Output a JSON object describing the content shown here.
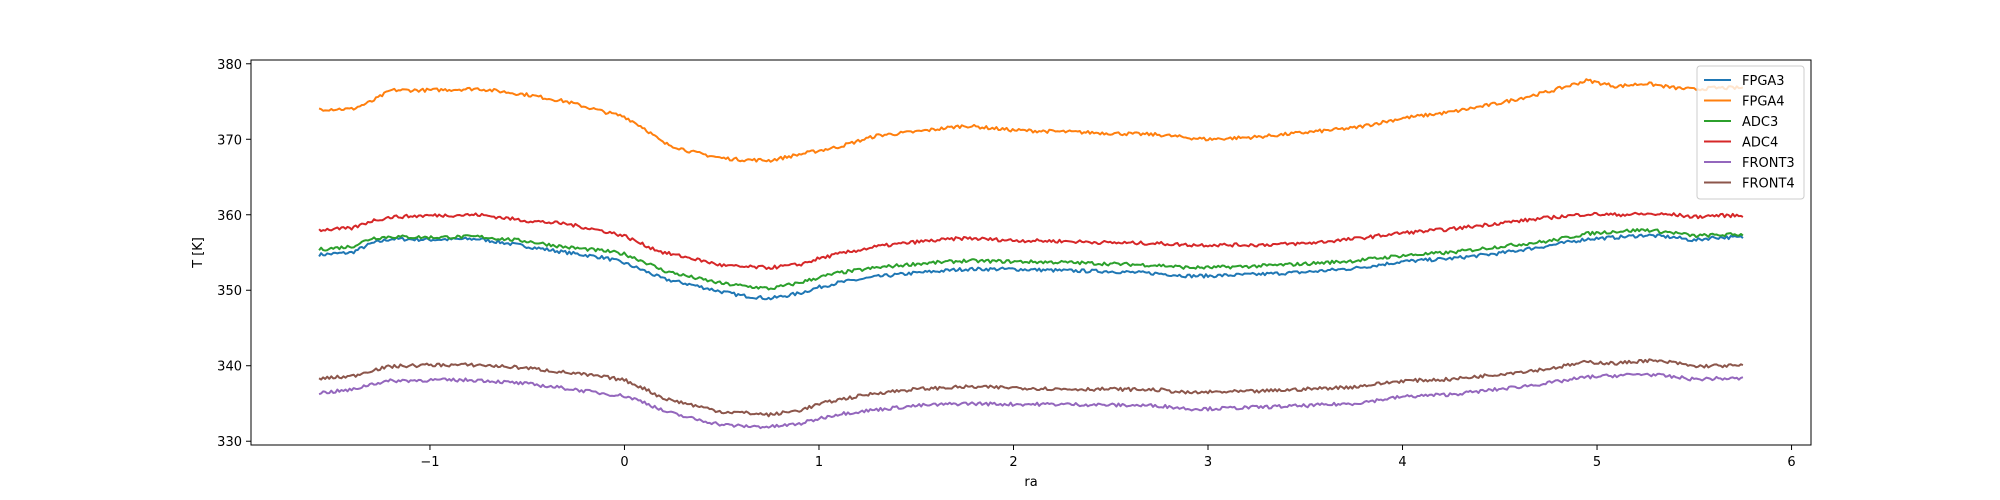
{
  "chart_data": {
    "type": "line",
    "title": "",
    "xlabel": "ra",
    "ylabel": "T [K]",
    "xlim": [
      -1.92,
      6.1
    ],
    "ylim": [
      329.5,
      380.5
    ],
    "xticks": [
      -1,
      0,
      1,
      2,
      3,
      4,
      5,
      6
    ],
    "yticks": [
      330,
      340,
      350,
      360,
      370,
      380
    ],
    "grid": false,
    "legend_position": "upper-right",
    "x": [
      -1.57,
      -1.4,
      -1.3,
      -1.2,
      -1.0,
      -0.75,
      -0.5,
      -0.3,
      -0.1,
      0.0,
      0.1,
      0.2,
      0.35,
      0.5,
      0.6,
      0.75,
      0.9,
      1.0,
      1.1,
      1.3,
      1.5,
      1.75,
      2.0,
      2.25,
      2.5,
      2.75,
      2.9,
      3.0,
      3.25,
      3.5,
      3.75,
      4.0,
      4.25,
      4.5,
      4.75,
      4.95,
      5.1,
      5.25,
      5.4,
      5.5,
      5.6,
      5.75
    ],
    "series": [
      {
        "name": "FPGA3",
        "color": "#1f77b4",
        "values": [
          354.7,
          355.0,
          356.2,
          356.8,
          356.7,
          356.8,
          355.8,
          355.0,
          354.3,
          353.6,
          352.6,
          351.5,
          350.7,
          349.8,
          349.3,
          348.9,
          349.6,
          350.4,
          351.0,
          351.8,
          352.3,
          352.8,
          352.8,
          352.6,
          352.5,
          352.2,
          351.9,
          351.9,
          352.1,
          352.4,
          352.9,
          353.8,
          354.2,
          354.9,
          355.9,
          356.8,
          357.0,
          357.3,
          357.0,
          356.6,
          357.0,
          357.0
        ]
      },
      {
        "name": "FPGA4",
        "color": "#ff7f0e",
        "values": [
          374.0,
          374.0,
          375.0,
          376.5,
          376.5,
          376.7,
          375.9,
          375.0,
          373.6,
          373.0,
          371.5,
          369.5,
          368.3,
          367.5,
          367.3,
          367.2,
          368.0,
          368.5,
          369.0,
          370.5,
          371.0,
          371.8,
          371.2,
          371.0,
          370.8,
          370.6,
          370.2,
          370.0,
          370.3,
          370.9,
          371.5,
          372.8,
          373.6,
          374.8,
          376.3,
          377.8,
          377.0,
          377.4,
          376.8,
          376.6,
          376.8,
          376.8
        ]
      },
      {
        "name": "ADC3",
        "color": "#2ca02c",
        "values": [
          355.4,
          355.8,
          356.9,
          357.1,
          357.0,
          357.1,
          356.5,
          355.7,
          355.2,
          354.8,
          353.8,
          352.6,
          351.7,
          350.9,
          350.6,
          350.2,
          351.0,
          351.7,
          352.3,
          353.0,
          353.5,
          353.9,
          353.8,
          353.7,
          353.5,
          353.3,
          353.0,
          353.0,
          353.2,
          353.5,
          353.9,
          354.6,
          355.0,
          355.8,
          356.5,
          357.5,
          357.8,
          358.0,
          357.6,
          357.2,
          357.3,
          357.4
        ]
      },
      {
        "name": "ADC4",
        "color": "#d62728",
        "values": [
          358.0,
          358.2,
          359.2,
          359.7,
          359.9,
          360.0,
          359.2,
          358.8,
          357.8,
          357.2,
          356.0,
          355.0,
          354.2,
          353.3,
          353.1,
          353.0,
          353.4,
          354.2,
          354.8,
          355.8,
          356.4,
          356.9,
          356.6,
          356.5,
          356.3,
          356.2,
          356.0,
          356.0,
          356.0,
          356.2,
          356.8,
          357.6,
          358.1,
          358.9,
          359.6,
          360.1,
          360.0,
          360.1,
          360.0,
          359.7,
          359.9,
          359.9
        ]
      },
      {
        "name": "FRONT3",
        "color": "#9467bd",
        "values": [
          336.4,
          336.8,
          337.6,
          338.0,
          338.1,
          338.1,
          337.6,
          337.0,
          336.3,
          336.0,
          335.2,
          334.0,
          333.0,
          332.2,
          332.0,
          331.9,
          332.3,
          333.0,
          333.6,
          334.2,
          334.7,
          335.0,
          334.9,
          334.9,
          334.8,
          334.7,
          334.3,
          334.3,
          334.5,
          334.7,
          335.0,
          335.9,
          336.2,
          336.9,
          337.7,
          338.5,
          338.7,
          338.9,
          338.5,
          338.2,
          338.3,
          338.3
        ]
      },
      {
        "name": "FRONT4",
        "color": "#8c564b",
        "values": [
          338.3,
          338.6,
          339.4,
          339.9,
          340.1,
          340.1,
          339.7,
          339.1,
          338.5,
          338.1,
          337.0,
          335.7,
          334.8,
          333.9,
          333.8,
          333.5,
          334.1,
          334.9,
          335.5,
          336.4,
          336.9,
          337.2,
          337.1,
          336.9,
          336.9,
          336.8,
          336.4,
          336.5,
          336.6,
          336.9,
          337.2,
          338.0,
          338.2,
          338.9,
          339.6,
          340.5,
          340.3,
          340.7,
          340.4,
          339.9,
          340.0,
          340.0
        ]
      }
    ]
  }
}
